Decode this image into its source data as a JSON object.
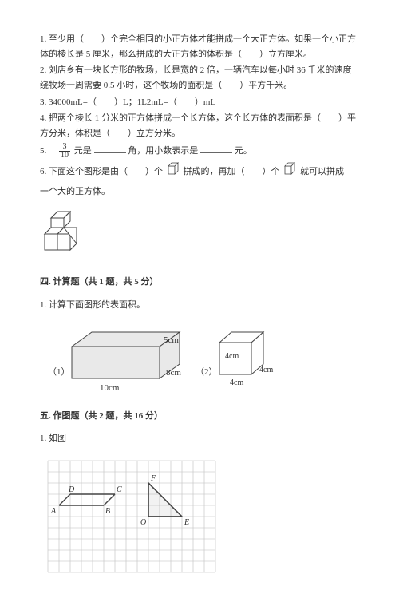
{
  "q1": "1. 至少用（　　）个完全相同的小正方体才能拼成一个大正方体。如果一个小正方体的棱长是 5 厘米，那么拼成的大正方体的体积是（　　）立方厘米。",
  "q2": "2. 刘店乡有一块长方形的牧场，长是宽的 2 倍，一辆汽车以每小时 36 千米的速度绕牧场一周需要 0.5 小时，这个牧场的面积是（　　）平方千米。",
  "q3": "3. 34000mL=（　　）L；1L2mL=（　　）mL",
  "q4": "4. 把两个棱长 1 分米的正方体拼成一个长方体，这个长方体的表面积是（　　）平方分米，体积是（　　）立方分米。",
  "q5_prefix": "5.　",
  "q5_a": "元是",
  "q5_b": "角，用小数表示是",
  "q5_c": "元。",
  "q6_a": "6. 下面这个图形是由（　　）个",
  "q6_b": "拼成的，再加（　　）个",
  "q6_c": "就可以拼成",
  "q6_d": "一个大的正方体。",
  "sec4": "四. 计算题（共 1 题，共 5 分）",
  "sec4q1": "1. 计算下面图形的表面积。",
  "box_labels": {
    "cuboid_h": "5cm",
    "cuboid_w": "8cm",
    "cuboid_l": "10cm",
    "left_num": "（1）",
    "right_num": "（2）",
    "cube_side1": "4cm",
    "cube_side2": "4cm",
    "cube_side3": "4cm"
  },
  "sec5": "五. 作图题（共 2 题，共 16 分）",
  "sec5q1": "1. 如图",
  "grid": {
    "cols": 15,
    "rows": 10,
    "cell": 14,
    "labels": {
      "D": "D",
      "C": "C",
      "A": "A",
      "B": "B",
      "F": "F",
      "O": "O",
      "E": "E"
    }
  },
  "colors": {
    "line": "#444444",
    "grid": "#bdbdbd",
    "text": "#333333"
  },
  "frac": {
    "num": "3",
    "den": "10"
  }
}
